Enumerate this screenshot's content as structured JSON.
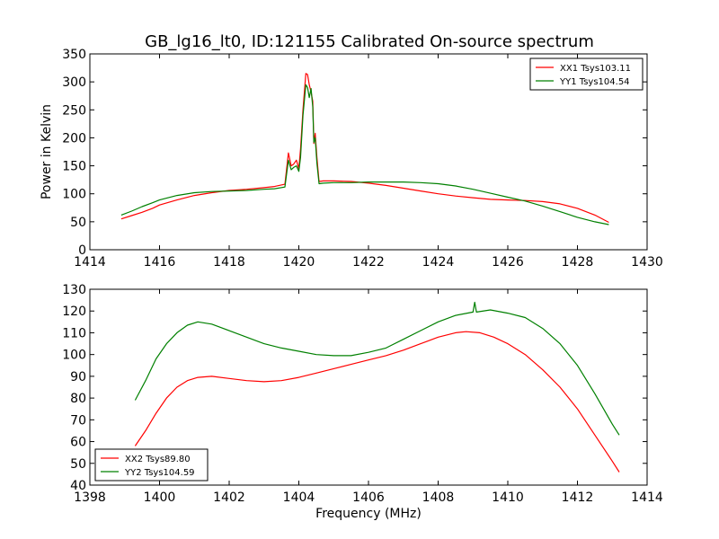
{
  "figure": {
    "title": "GB_lg16_lt0, ID:121155 Calibrated On-source spectrum",
    "xlabel": "Frequency (MHz)",
    "ylabel_top": "Power in Kelvin"
  },
  "chart_data": [
    {
      "type": "line",
      "title": "GB_lg16_lt0, ID:121155 Calibrated On-source spectrum",
      "xlabel": "",
      "ylabel": "Power in Kelvin",
      "xlim": [
        1414,
        1430
      ],
      "ylim": [
        0,
        350
      ],
      "xticks": [
        1414,
        1416,
        1418,
        1420,
        1422,
        1424,
        1426,
        1428,
        1430
      ],
      "yticks": [
        0,
        50,
        100,
        150,
        200,
        250,
        300,
        350
      ],
      "legend_position": "top-right",
      "series": [
        {
          "name": "XX1 Tsys103.11",
          "color": "#ff0000",
          "points": [
            [
              1414.9,
              55
            ],
            [
              1415.2,
              61
            ],
            [
              1415.5,
              67
            ],
            [
              1415.8,
              74
            ],
            [
              1416.0,
              80
            ],
            [
              1416.5,
              89
            ],
            [
              1417.0,
              97
            ],
            [
              1417.5,
              102
            ],
            [
              1418.0,
              106
            ],
            [
              1418.5,
              108
            ],
            [
              1419.0,
              111
            ],
            [
              1419.3,
              113
            ],
            [
              1419.6,
              117
            ],
            [
              1419.7,
              173
            ],
            [
              1419.78,
              150
            ],
            [
              1419.85,
              153
            ],
            [
              1419.93,
              160
            ],
            [
              1420.0,
              145
            ],
            [
              1420.05,
              180
            ],
            [
              1420.12,
              250
            ],
            [
              1420.2,
              315
            ],
            [
              1420.25,
              313
            ],
            [
              1420.3,
              295
            ],
            [
              1420.35,
              282
            ],
            [
              1420.4,
              265
            ],
            [
              1420.43,
              190
            ],
            [
              1420.47,
              208
            ],
            [
              1420.52,
              165
            ],
            [
              1420.58,
              122
            ],
            [
              1420.7,
              123
            ],
            [
              1421.0,
              123
            ],
            [
              1421.5,
              122
            ],
            [
              1422.0,
              119
            ],
            [
              1422.5,
              115
            ],
            [
              1423.0,
              110
            ],
            [
              1423.5,
              105
            ],
            [
              1424.0,
              100
            ],
            [
              1424.5,
              96
            ],
            [
              1425.0,
              93
            ],
            [
              1425.5,
              90
            ],
            [
              1426.0,
              89
            ],
            [
              1426.5,
              88
            ],
            [
              1427.0,
              86
            ],
            [
              1427.5,
              82
            ],
            [
              1428.0,
              74
            ],
            [
              1428.5,
              62
            ],
            [
              1428.9,
              49
            ]
          ]
        },
        {
          "name": "YY1 Tsys104.54",
          "color": "#008000",
          "points": [
            [
              1414.9,
              62
            ],
            [
              1415.2,
              69
            ],
            [
              1415.5,
              77
            ],
            [
              1415.8,
              84
            ],
            [
              1416.0,
              89
            ],
            [
              1416.5,
              97
            ],
            [
              1417.0,
              102
            ],
            [
              1417.5,
              104
            ],
            [
              1418.0,
              105
            ],
            [
              1418.5,
              106
            ],
            [
              1419.0,
              108
            ],
            [
              1419.3,
              109
            ],
            [
              1419.6,
              112
            ],
            [
              1419.7,
              160
            ],
            [
              1419.78,
              143
            ],
            [
              1419.85,
              147
            ],
            [
              1419.93,
              150
            ],
            [
              1420.0,
              140
            ],
            [
              1420.05,
              165
            ],
            [
              1420.12,
              240
            ],
            [
              1420.2,
              295
            ],
            [
              1420.25,
              290
            ],
            [
              1420.3,
              272
            ],
            [
              1420.35,
              288
            ],
            [
              1420.4,
              255
            ],
            [
              1420.43,
              192
            ],
            [
              1420.47,
              200
            ],
            [
              1420.52,
              155
            ],
            [
              1420.58,
              118
            ],
            [
              1420.7,
              119
            ],
            [
              1421.0,
              120
            ],
            [
              1421.5,
              120
            ],
            [
              1422.0,
              121
            ],
            [
              1422.5,
              121
            ],
            [
              1423.0,
              121
            ],
            [
              1423.5,
              120
            ],
            [
              1424.0,
              118
            ],
            [
              1424.5,
              114
            ],
            [
              1425.0,
              108
            ],
            [
              1425.5,
              101
            ],
            [
              1426.0,
              94
            ],
            [
              1426.5,
              87
            ],
            [
              1427.0,
              78
            ],
            [
              1427.5,
              68
            ],
            [
              1428.0,
              58
            ],
            [
              1428.5,
              50
            ],
            [
              1428.9,
              45
            ]
          ]
        }
      ]
    },
    {
      "type": "line",
      "title": "",
      "xlabel": "Frequency (MHz)",
      "ylabel": "",
      "xlim": [
        1398,
        1414
      ],
      "ylim": [
        40,
        130
      ],
      "xticks": [
        1398,
        1400,
        1402,
        1404,
        1406,
        1408,
        1410,
        1412,
        1414
      ],
      "yticks": [
        40,
        50,
        60,
        70,
        80,
        90,
        100,
        110,
        120,
        130
      ],
      "legend_position": "bottom-left",
      "series": [
        {
          "name": "XX2 Tsys89.80",
          "color": "#ff0000",
          "points": [
            [
              1399.3,
              58
            ],
            [
              1399.6,
              65
            ],
            [
              1399.9,
              73
            ],
            [
              1400.2,
              80
            ],
            [
              1400.5,
              85
            ],
            [
              1400.8,
              88
            ],
            [
              1401.1,
              89.5
            ],
            [
              1401.5,
              90
            ],
            [
              1402.0,
              89
            ],
            [
              1402.5,
              88
            ],
            [
              1403.0,
              87.5
            ],
            [
              1403.5,
              88
            ],
            [
              1404.0,
              89.5
            ],
            [
              1404.5,
              91.5
            ],
            [
              1405.0,
              93.5
            ],
            [
              1405.5,
              95.5
            ],
            [
              1406.0,
              97.5
            ],
            [
              1406.5,
              99.5
            ],
            [
              1407.0,
              102
            ],
            [
              1407.5,
              105
            ],
            [
              1408.0,
              108
            ],
            [
              1408.5,
              110
            ],
            [
              1408.8,
              110.5
            ],
            [
              1409.2,
              110
            ],
            [
              1409.6,
              108
            ],
            [
              1410.0,
              105
            ],
            [
              1410.5,
              100
            ],
            [
              1411.0,
              93
            ],
            [
              1411.5,
              85
            ],
            [
              1412.0,
              75
            ],
            [
              1412.5,
              63
            ],
            [
              1413.0,
              51
            ],
            [
              1413.2,
              46
            ]
          ]
        },
        {
          "name": "YY2 Tsys104.59",
          "color": "#008000",
          "points": [
            [
              1399.3,
              79
            ],
            [
              1399.6,
              88
            ],
            [
              1399.9,
              98
            ],
            [
              1400.2,
              105
            ],
            [
              1400.5,
              110
            ],
            [
              1400.8,
              113.5
            ],
            [
              1401.1,
              115
            ],
            [
              1401.5,
              114
            ],
            [
              1402.0,
              111
            ],
            [
              1402.5,
              108
            ],
            [
              1403.0,
              105
            ],
            [
              1403.5,
              103
            ],
            [
              1404.0,
              101.5
            ],
            [
              1404.5,
              100
            ],
            [
              1405.0,
              99.5
            ],
            [
              1405.5,
              99.5
            ],
            [
              1406.0,
              101
            ],
            [
              1406.5,
              103
            ],
            [
              1407.0,
              107
            ],
            [
              1407.5,
              111
            ],
            [
              1408.0,
              115
            ],
            [
              1408.5,
              118
            ],
            [
              1409.0,
              119.5
            ],
            [
              1409.05,
              124
            ],
            [
              1409.1,
              119.5
            ],
            [
              1409.5,
              120.5
            ],
            [
              1410.0,
              119
            ],
            [
              1410.5,
              117
            ],
            [
              1411.0,
              112
            ],
            [
              1411.5,
              105
            ],
            [
              1412.0,
              95
            ],
            [
              1412.5,
              82
            ],
            [
              1413.0,
              68
            ],
            [
              1413.2,
              63
            ]
          ]
        }
      ]
    }
  ]
}
